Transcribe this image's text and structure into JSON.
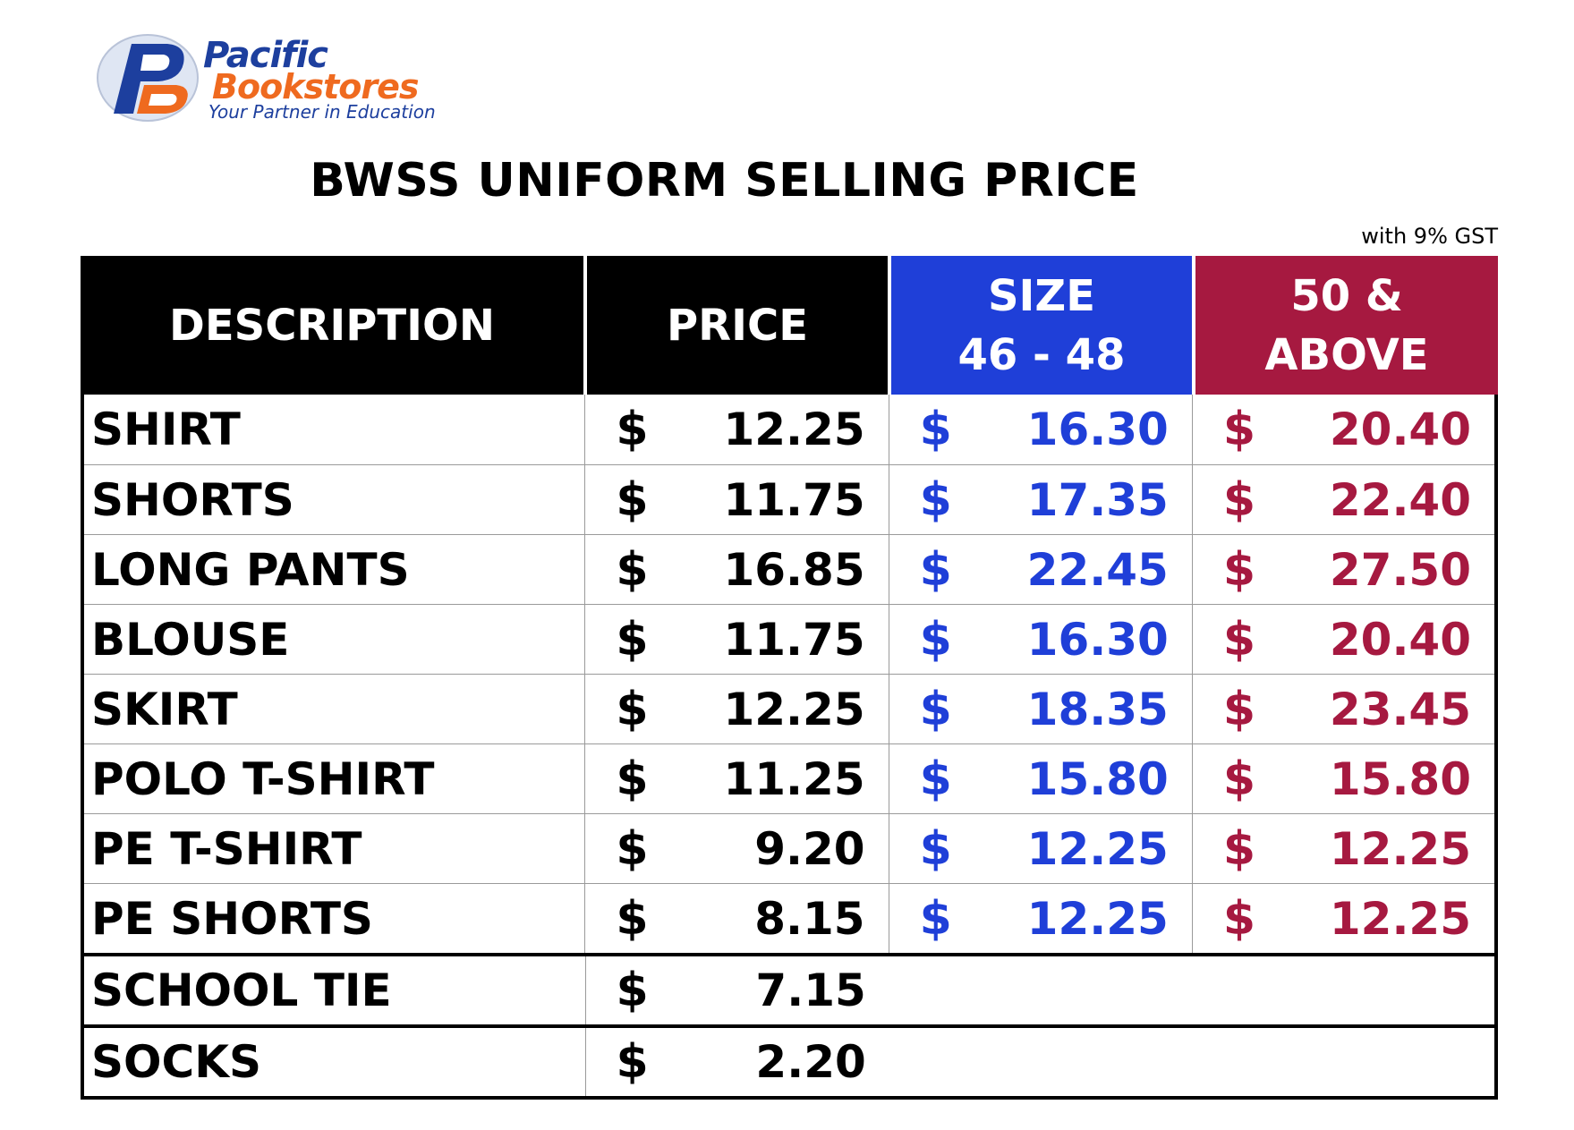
{
  "logo": {
    "name_line_1": "Pacific",
    "name_line_2": "Bookstores",
    "tagline": "Your Partner in Education",
    "monogram": "PB"
  },
  "title": "BWSS UNIFORM SELLING PRICE",
  "gst_note": "with 9% GST",
  "colors": {
    "header_black": "#000000",
    "size_blue": "#1f3fd8",
    "above_red": "#a61940",
    "logo_blue": "#1d3f9e",
    "logo_orange": "#ef6a1f"
  },
  "table": {
    "headers": {
      "description": "DESCRIPTION",
      "price": "PRICE",
      "size_line_1": "SIZE",
      "size_line_2": "46 - 48",
      "above_line_1": "50 &",
      "above_line_2": "ABOVE"
    },
    "currency": "$",
    "rows": [
      {
        "description": "SHIRT",
        "price": "12.25",
        "size": "16.30",
        "above": "20.40"
      },
      {
        "description": "SHORTS",
        "price": "11.75",
        "size": "17.35",
        "above": "22.40"
      },
      {
        "description": "LONG PANTS",
        "price": "16.85",
        "size": "22.45",
        "above": "27.50"
      },
      {
        "description": "BLOUSE",
        "price": "11.75",
        "size": "16.30",
        "above": "20.40"
      },
      {
        "description": "SKIRT",
        "price": "12.25",
        "size": "18.35",
        "above": "23.45"
      },
      {
        "description": "POLO T-SHIRT",
        "price": "11.25",
        "size": "15.80",
        "above": "15.80"
      },
      {
        "description": "PE T-SHIRT",
        "price": "9.20",
        "size": "12.25",
        "above": "12.25"
      },
      {
        "description": "PE SHORTS",
        "price": "8.15",
        "size": "12.25",
        "above": "12.25"
      }
    ],
    "extra_rows": [
      {
        "description": "SCHOOL TIE",
        "price": "7.15"
      },
      {
        "description": "SOCKS",
        "price": "2.20"
      }
    ]
  }
}
